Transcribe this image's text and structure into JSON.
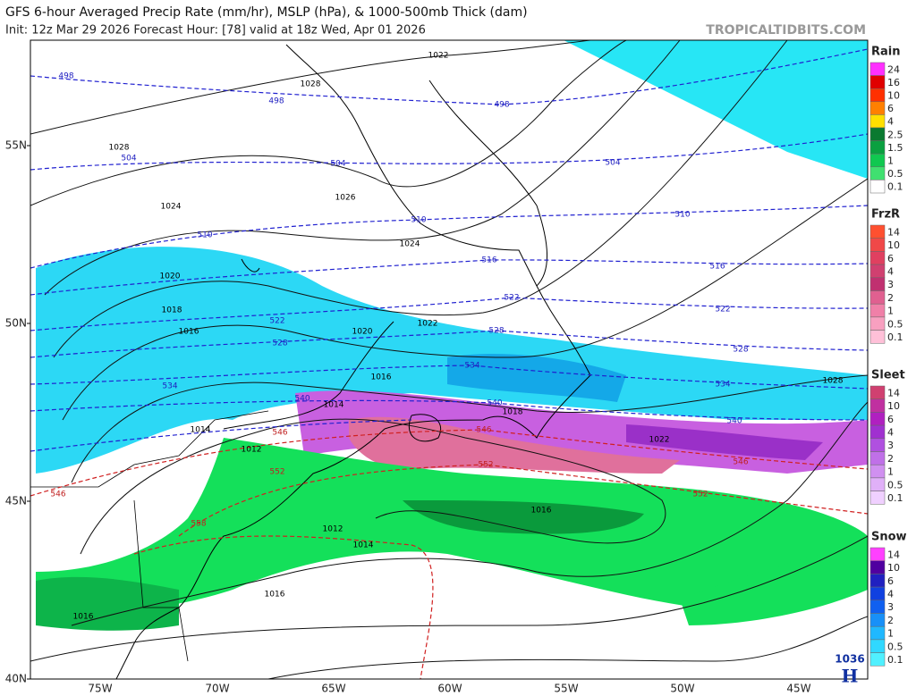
{
  "header": {
    "title": "GFS 6-hour Averaged Precip Rate (mm/hr), MSLP (hPa), & 1000-500mb Thick (dam)",
    "subtitle": "Init: 12z Mar 29 2026   Forecast Hour: [78]   valid at 18z Wed, Apr 01 2026",
    "watermark": "TROPICALTIDBITS.COM"
  },
  "axes": {
    "lon_labels": [
      "75W",
      "70W",
      "65W",
      "60W",
      "55W",
      "50W",
      "45W"
    ],
    "lat_labels": [
      "55N",
      "50N",
      "45N",
      "40N"
    ]
  },
  "legend": [
    {
      "title": "Rain",
      "labels": [
        24,
        16,
        10,
        6,
        4,
        2.5,
        1.5,
        1,
        0.5,
        0.1
      ]
    },
    {
      "title": "FrzR",
      "labels": [
        14,
        10,
        6,
        4,
        3,
        2,
        1,
        0.5,
        0.1
      ]
    },
    {
      "title": "Sleet",
      "labels": [
        14,
        10,
        6,
        4,
        3,
        2,
        1,
        0.5,
        0.1
      ]
    },
    {
      "title": "Snow",
      "labels": [
        14,
        10,
        6,
        4,
        3,
        2,
        1,
        0.5,
        0.1
      ]
    }
  ],
  "map": {
    "high_value": "1036",
    "high_label": "H",
    "isobar_labels": [
      "1022",
      "1028",
      "1028",
      "1026",
      "1024",
      "1024",
      "1020",
      "1018",
      "1016",
      "1020",
      "1022",
      "1016",
      "1014",
      "1018",
      "1014",
      "1012",
      "1022",
      "1028",
      "1016",
      "1012",
      "1014",
      "1016",
      "1016"
    ],
    "thickness_blue_labels": [
      "498",
      "498",
      "498",
      "504",
      "504",
      "504",
      "510",
      "510",
      "510",
      "516",
      "516",
      "522",
      "522",
      "522",
      "528",
      "528",
      "528",
      "534",
      "534",
      "534",
      "540",
      "540",
      "540"
    ],
    "thickness_red_labels": [
      "546",
      "546",
      "546",
      "552",
      "552",
      "552",
      "546",
      "558"
    ]
  }
}
